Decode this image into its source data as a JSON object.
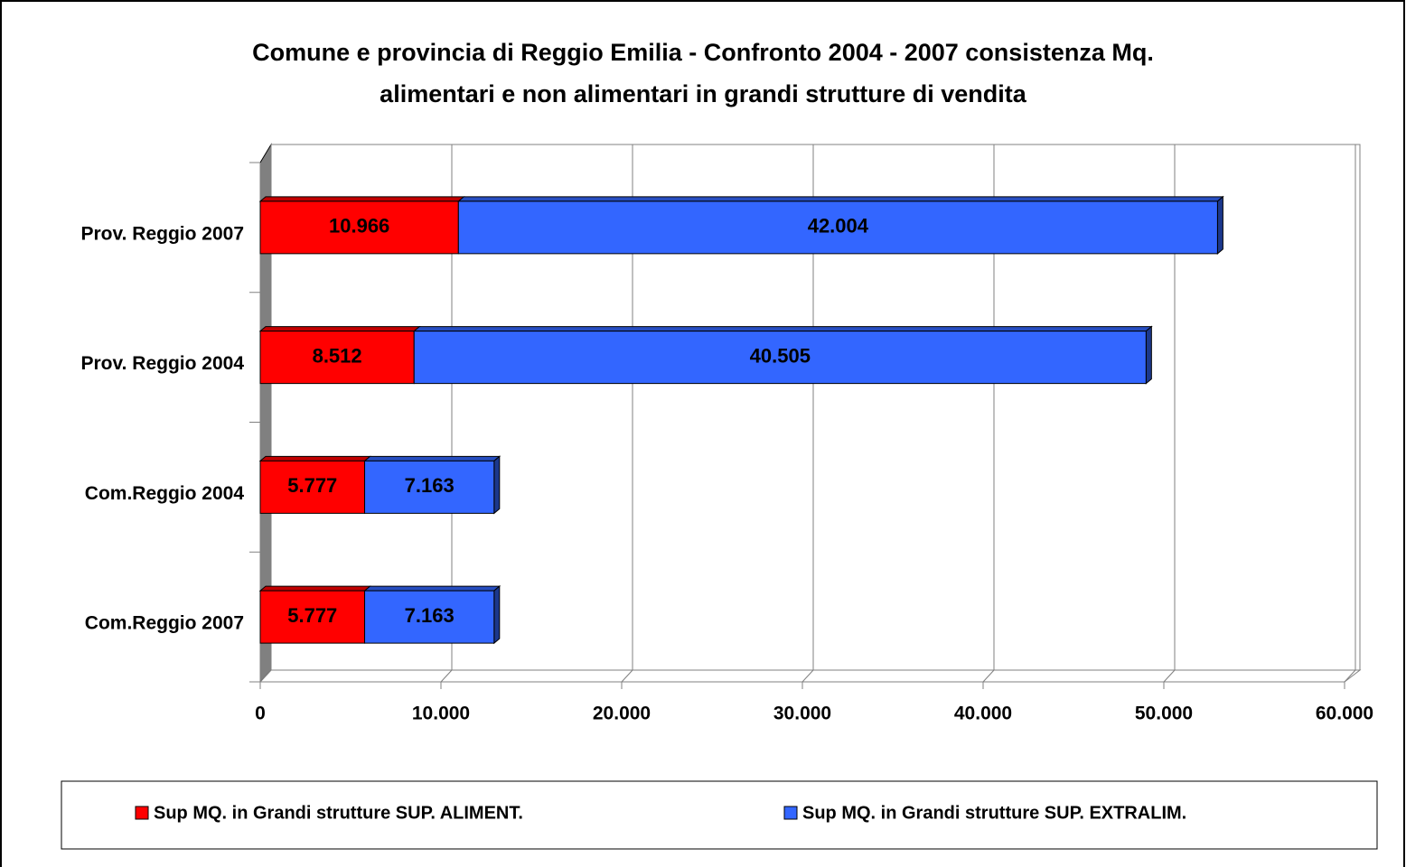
{
  "chart_data": {
    "type": "bar",
    "orientation": "horizontal",
    "stacked": true,
    "title": [
      "Comune e provincia di Reggio Emilia - Confronto 2004 - 2007 consistenza Mq.",
      "alimentari e non alimentari in grandi strutture di vendita"
    ],
    "categories": [
      "Prov. Reggio 2007",
      "Prov. Reggio 2004",
      "Com.Reggio 2004",
      "Com.Reggio 2007"
    ],
    "series": [
      {
        "name": "Sup MQ. in Grandi strutture SUP. ALIMENT.",
        "color": "#ff0000",
        "values": [
          10966,
          8512,
          5777,
          5777
        ],
        "value_labels": [
          "10.966",
          "8.512",
          "5.777",
          "5.777"
        ]
      },
      {
        "name": "Sup MQ. in Grandi strutture SUP. EXTRALIM.",
        "color": "#3366ff",
        "values": [
          42004,
          40505,
          7163,
          7163
        ],
        "value_labels": [
          "42.004",
          "40.505",
          "7.163",
          "7.163"
        ]
      }
    ],
    "xlim": [
      0,
      60000
    ],
    "xticks": [
      0,
      {
        "value": 10000,
        "label": "10.000"
      },
      {
        "value": 20000,
        "label": "20.000"
      },
      {
        "value": 30000,
        "label": "30.000"
      },
      {
        "value": 40000,
        "label": "40.000"
      },
      {
        "value": 50000,
        "label": "50.000"
      },
      {
        "value": 60000,
        "label": "60.000"
      }
    ],
    "grid": true,
    "legend": "bottom"
  }
}
